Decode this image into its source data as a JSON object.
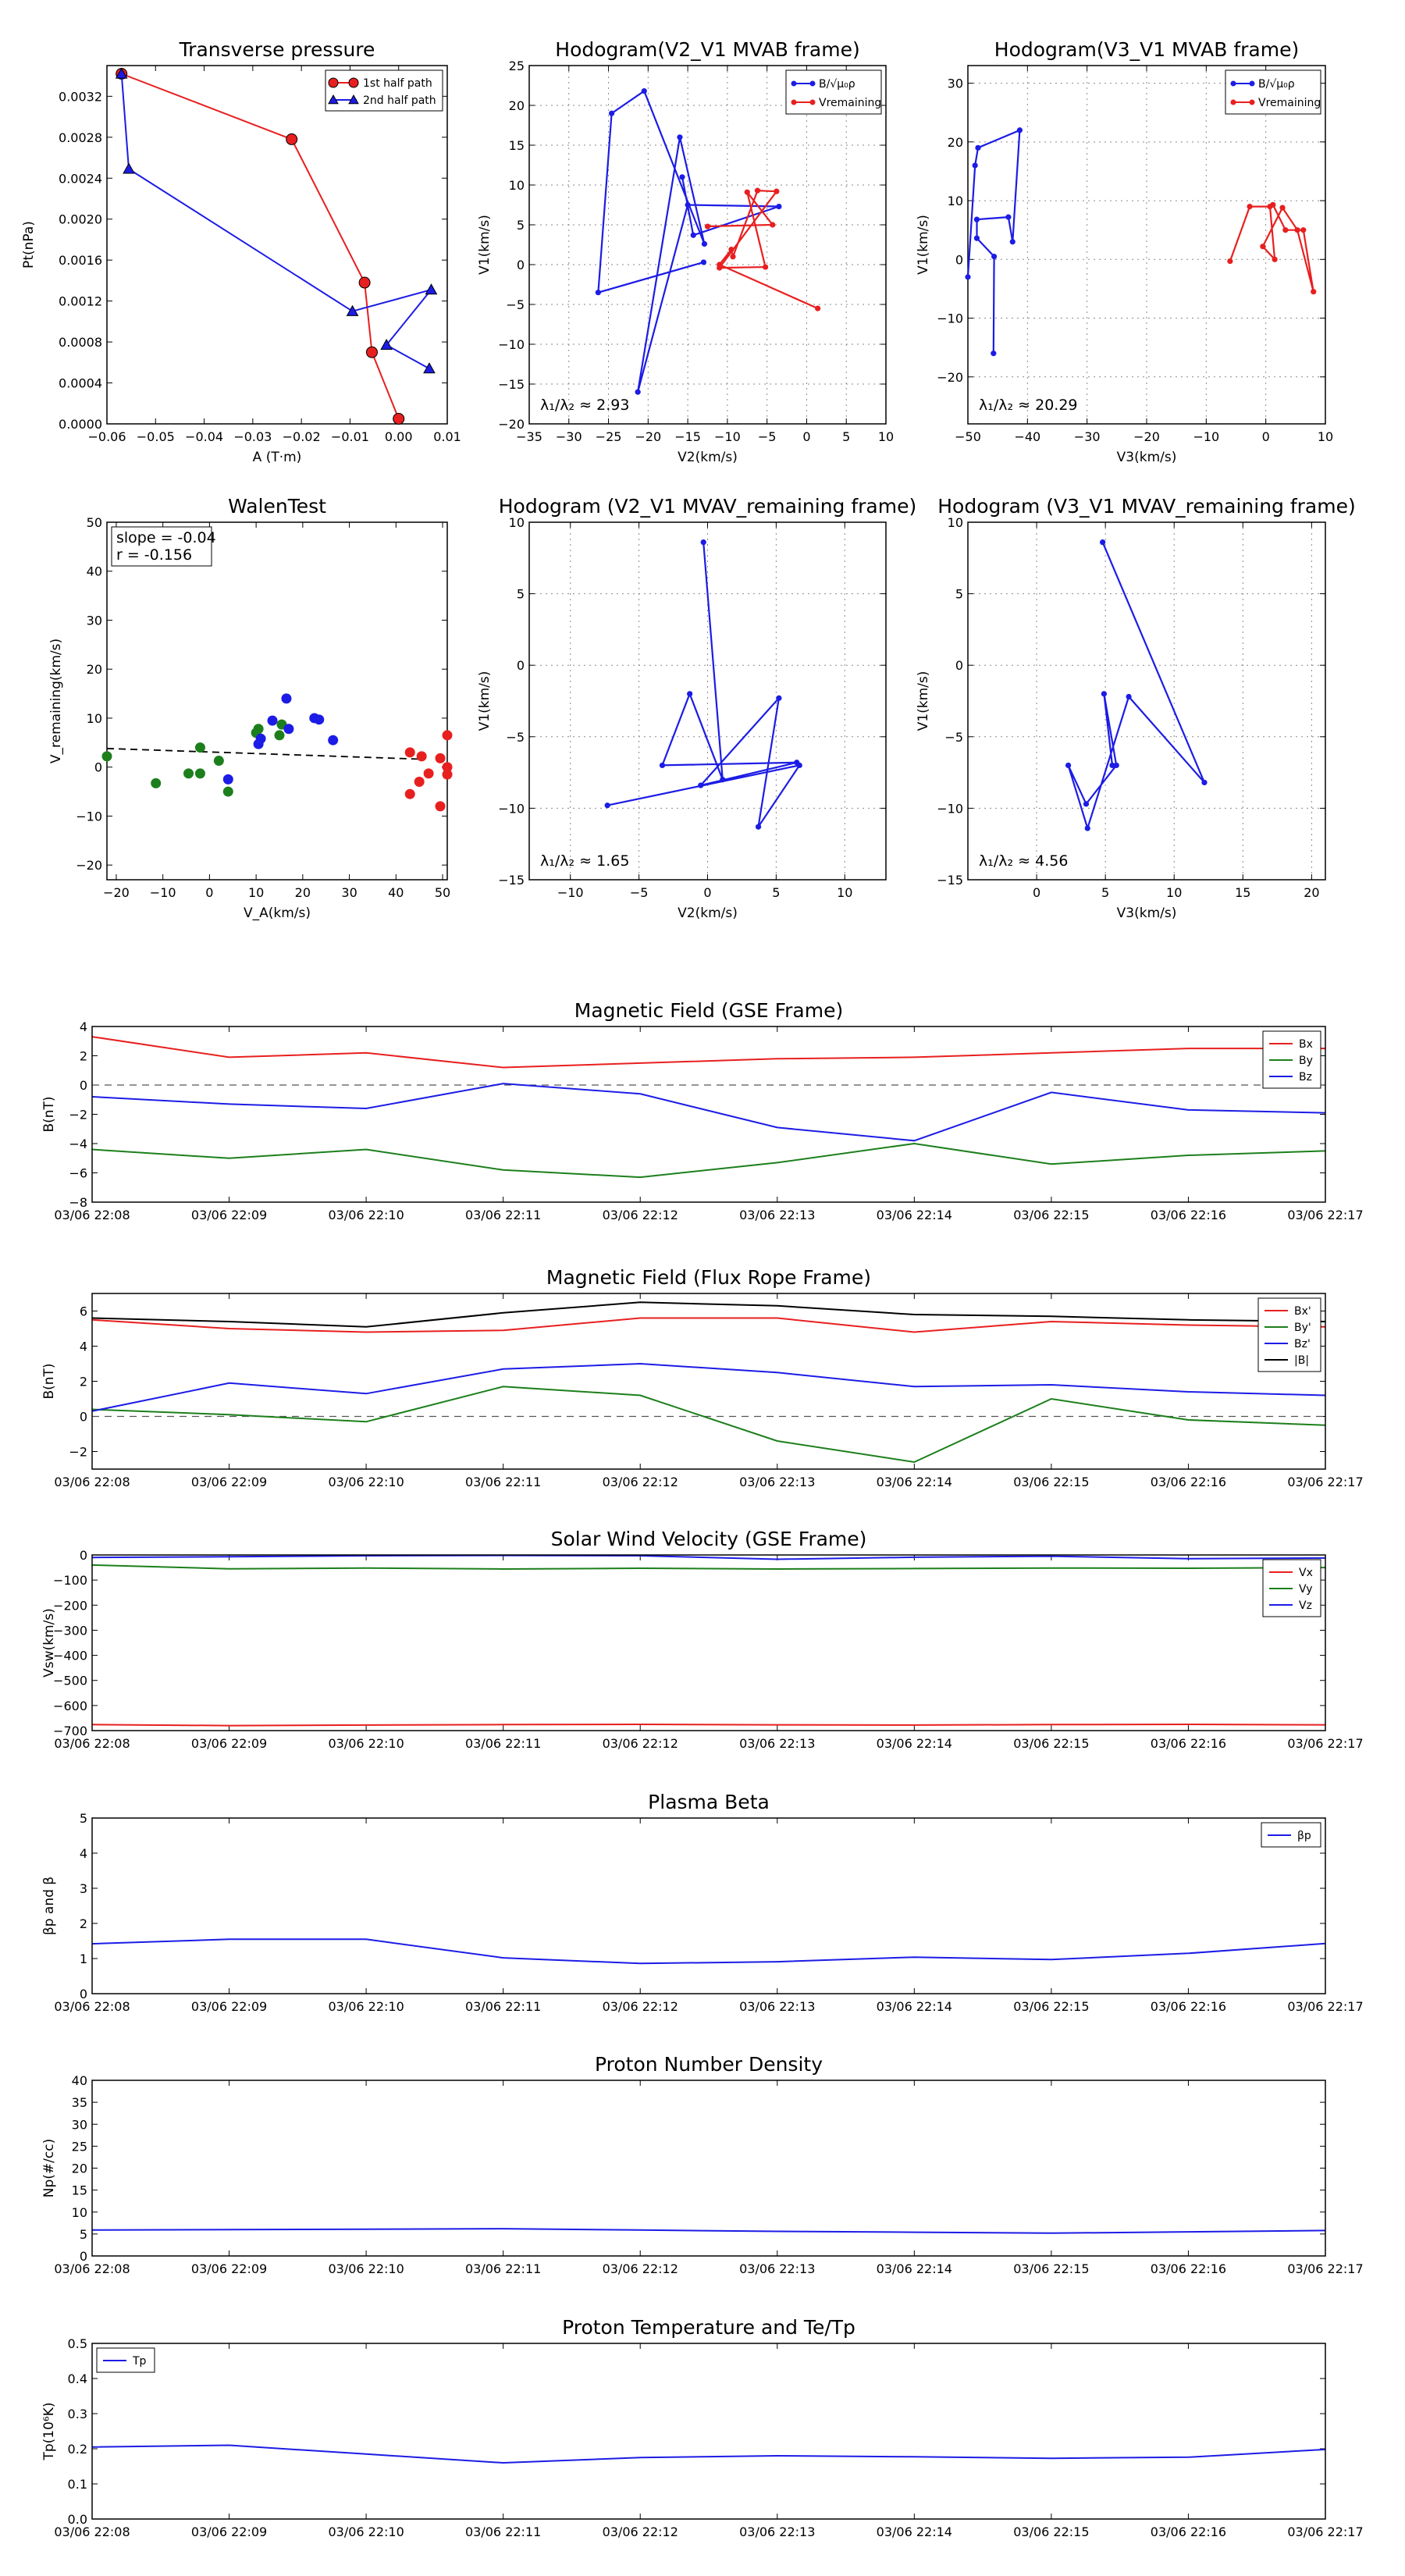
{
  "colors": {
    "red": "#e81f1f",
    "green": "#1c7f1c",
    "blue": "#1c1ce6",
    "black": "#000000"
  },
  "chart_data": [
    {
      "id": "pt",
      "type": "line",
      "title": "Transverse pressure",
      "xlabel": "A (T·m)",
      "ylabel": "Pt(nPa)",
      "xlim": [
        -0.06,
        0.01
      ],
      "ylim": [
        0,
        0.0035
      ],
      "xticks": [
        -0.06,
        -0.05,
        -0.04,
        -0.03,
        -0.02,
        -0.01,
        0.0,
        0.01
      ],
      "xticklabels": [
        "−0.06",
        "−0.05",
        "−0.04",
        "−0.03",
        "−0.02",
        "−0.01",
        "0.00",
        "0.01"
      ],
      "yticks": [
        0,
        0.0004,
        0.0008,
        0.0012,
        0.0016,
        0.002,
        0.0024,
        0.0028,
        0.0032
      ],
      "yticklabels": [
        "0.0000",
        "0.0004",
        "0.0008",
        "0.0012",
        "0.0016",
        "0.0020",
        "0.0024",
        "0.0028",
        "0.0032"
      ],
      "legend_position": "top-right",
      "series": [
        {
          "name": "1st half path",
          "color": "red",
          "marker": "circle",
          "points": [
            [
              -0.057,
              0.00342
            ],
            [
              -0.022,
              0.00278
            ],
            [
              -0.007,
              0.00138
            ],
            [
              -0.0055,
              0.0007
            ],
            [
              0.0,
              5e-05
            ]
          ]
        },
        {
          "name": "2nd half path",
          "color": "blue",
          "marker": "triangle",
          "points": [
            [
              -0.057,
              0.00342
            ],
            [
              -0.0555,
              0.00249
            ],
            [
              -0.0095,
              0.0011
            ],
            [
              0.0067,
              0.00131
            ],
            [
              -0.0025,
              0.00077
            ],
            [
              0.0063,
              0.00054
            ]
          ]
        }
      ]
    },
    {
      "id": "h1",
      "type": "line",
      "title": "Hodogram(V2_V1 MVAB frame)",
      "xlabel": "V2(km/s)",
      "ylabel": "V1(km/s)",
      "xlim": [
        -35,
        10
      ],
      "ylim": [
        -20,
        25
      ],
      "xticks": [
        -35,
        -30,
        -25,
        -20,
        -15,
        -10,
        -5,
        0,
        5,
        10
      ],
      "yticks": [
        -20,
        -15,
        -10,
        -5,
        0,
        5,
        10,
        15,
        20,
        25
      ],
      "grid": true,
      "legend_position": "top-right",
      "legend": [
        {
          "text": "B/√μ₀ρ",
          "color": "blue"
        },
        {
          "text": "Vremaining",
          "color": "red"
        }
      ],
      "annotation": "λ₁/λ₂ ≈ 2.93",
      "series": [
        {
          "color": "blue",
          "points": [
            [
              -13,
              0.3
            ],
            [
              -26.3,
              -3.5
            ],
            [
              -24.6,
              19
            ],
            [
              -20.5,
              21.8
            ],
            [
              -12.9,
              2.6
            ],
            [
              -16,
              16
            ],
            [
              -21.3,
              -16
            ],
            [
              -15,
              7.5
            ],
            [
              -3.5,
              7.3
            ],
            [
              -14.3,
              3.7
            ],
            [
              -15.7,
              11
            ]
          ]
        },
        {
          "color": "red",
          "points": [
            [
              -12.5,
              4.8
            ],
            [
              -4.3,
              5
            ],
            [
              -7.5,
              9.1
            ],
            [
              -5.2,
              -0.3
            ],
            [
              -11,
              -0.4
            ],
            [
              -3.8,
              9.2
            ],
            [
              -6.2,
              9.3
            ],
            [
              -9.3,
              1
            ],
            [
              -9.5,
              1.9
            ],
            [
              -11,
              0
            ],
            [
              1.4,
              -5.5
            ]
          ]
        }
      ]
    },
    {
      "id": "h2",
      "type": "line",
      "title": "Hodogram(V3_V1 MVAB frame)",
      "xlabel": "V3(km/s)",
      "ylabel": "V1(km/s)",
      "xlim": [
        -50,
        10
      ],
      "ylim": [
        -28,
        33
      ],
      "xticks": [
        -50,
        -40,
        -30,
        -20,
        -10,
        0,
        10
      ],
      "yticks": [
        -20,
        -10,
        0,
        10,
        20,
        30
      ],
      "grid": true,
      "legend_position": "top-right",
      "legend": [
        {
          "text": "B/√μ₀ρ",
          "color": "blue"
        },
        {
          "text": "Vremaining",
          "color": "red"
        }
      ],
      "annotation": "λ₁/λ₂ ≈ 20.29",
      "series": [
        {
          "color": "blue",
          "points": [
            [
              -50,
              -3
            ],
            [
              -48.8,
              16
            ],
            [
              -48.3,
              19
            ],
            [
              -41.3,
              22
            ],
            [
              -42.5,
              3
            ],
            [
              -43.2,
              7.2
            ],
            [
              -48.5,
              6.8
            ],
            [
              -48.5,
              3.6
            ],
            [
              -45.6,
              0.5
            ],
            [
              -45.7,
              -16
            ]
          ]
        },
        {
          "color": "red",
          "points": [
            [
              -6,
              -0.3
            ],
            [
              -2.7,
              9
            ],
            [
              0.7,
              9
            ],
            [
              1.5,
              0
            ],
            [
              -0.5,
              2.2
            ],
            [
              2.8,
              8.8
            ],
            [
              5.3,
              5
            ],
            [
              8,
              -5.5
            ],
            [
              6.3,
              5
            ],
            [
              3.3,
              5
            ],
            [
              1.2,
              9.3
            ]
          ]
        }
      ]
    },
    {
      "id": "walen",
      "type": "scatter",
      "title": "WalenTest",
      "xlabel": "V_A(km/s)",
      "ylabel": "V_remaining(km/s)",
      "xlim": [
        -22,
        51
      ],
      "ylim": [
        -23,
        50
      ],
      "xticks": [
        -20,
        -10,
        0,
        10,
        20,
        30,
        40,
        50
      ],
      "yticks": [
        -20,
        -10,
        0,
        10,
        20,
        30,
        40,
        50
      ],
      "annotation": [
        "slope = -0.04",
        "r = -0.156"
      ],
      "fit": {
        "slope": -0.04,
        "intercept": 3.8
      },
      "series": [
        {
          "color": "green",
          "points": [
            [
              -22,
              2.2
            ],
            [
              -11.5,
              -3.3
            ],
            [
              -4.5,
              -1.3
            ],
            [
              -2,
              4
            ],
            [
              -2,
              -1.3
            ],
            [
              2,
              1.3
            ],
            [
              4,
              -5
            ],
            [
              10,
              7
            ],
            [
              10.5,
              7.8
            ],
            [
              15,
              6.5
            ],
            [
              15.5,
              8.7
            ]
          ]
        },
        {
          "color": "blue",
          "points": [
            [
              4,
              -2.5
            ],
            [
              10.5,
              4.7
            ],
            [
              11,
              5.8
            ],
            [
              13.5,
              9.5
            ],
            [
              16.5,
              14
            ],
            [
              17,
              7.8
            ],
            [
              22.5,
              10
            ],
            [
              23.5,
              9.7
            ],
            [
              26.5,
              5.5
            ]
          ]
        },
        {
          "color": "red",
          "points": [
            [
              43,
              3
            ],
            [
              43,
              -5.5
            ],
            [
              45,
              -3
            ],
            [
              45.5,
              2.2
            ],
            [
              47,
              -1.3
            ],
            [
              49.5,
              1.8
            ],
            [
              49.5,
              -8
            ],
            [
              51,
              6.5
            ],
            [
              51,
              0
            ],
            [
              51,
              -1.5
            ]
          ]
        }
      ]
    },
    {
      "id": "h3",
      "type": "line",
      "title": "Hodogram (V2_V1 MVAV_remaining frame)",
      "xlabel": "V2(km/s)",
      "ylabel": "V1(km/s)",
      "xlim": [
        -13,
        13
      ],
      "ylim": [
        -15,
        10
      ],
      "xticks": [
        -10,
        -5,
        0,
        5,
        10
      ],
      "yticks": [
        -15,
        -10,
        -5,
        0,
        5,
        10
      ],
      "grid": true,
      "annotation": "λ₁/λ₂ ≈ 1.65",
      "series": [
        {
          "color": "blue",
          "points": [
            [
              -0.3,
              8.6
            ],
            [
              1.1,
              -8
            ],
            [
              -1.3,
              -2
            ],
            [
              -3.3,
              -7
            ],
            [
              6.5,
              -6.8
            ],
            [
              -0.5,
              -8.4
            ],
            [
              5.2,
              -2.3
            ],
            [
              3.7,
              -11.3
            ],
            [
              6.7,
              -7
            ],
            [
              -7.3,
              -9.8
            ]
          ]
        }
      ]
    },
    {
      "id": "h4",
      "type": "line",
      "title": "Hodogram (V3_V1 MVAV_remaining frame)",
      "xlabel": "V3(km/s)",
      "ylabel": "V1(km/s)",
      "xlim": [
        -5,
        21
      ],
      "ylim": [
        -15,
        10
      ],
      "xticks": [
        0,
        5,
        10,
        15,
        20
      ],
      "yticks": [
        -15,
        -10,
        -5,
        0,
        5,
        10
      ],
      "grid": true,
      "annotation": "λ₁/λ₂ ≈ 4.56",
      "series": [
        {
          "color": "blue",
          "points": [
            [
              4.8,
              8.6
            ],
            [
              12.2,
              -8.2
            ],
            [
              6.7,
              -2.2
            ],
            [
              3.7,
              -11.4
            ],
            [
              2.3,
              -7
            ],
            [
              3.6,
              -9.7
            ],
            [
              5.8,
              -7
            ],
            [
              4.9,
              -2
            ],
            [
              5.5,
              -7
            ]
          ]
        }
      ]
    },
    {
      "id": "bgse",
      "type": "line",
      "title": "Magnetic Field (GSE Frame)",
      "ylabel": "B(nT)",
      "ylim": [
        -8,
        4
      ],
      "yticks": [
        -8,
        -6,
        -4,
        -2,
        0,
        2,
        4
      ],
      "yticklabels": [
        "−8",
        "−6",
        "−4",
        "−2",
        "0",
        "2",
        "4"
      ],
      "zero_line": true,
      "legend_position": "top-right",
      "series": [
        {
          "name": "Bx",
          "color": "red",
          "values": [
            3.3,
            1.9,
            2.2,
            1.2,
            1.5,
            1.8,
            1.9,
            2.2,
            2.5,
            2.5
          ]
        },
        {
          "name": "By",
          "color": "green",
          "values": [
            -4.4,
            -5,
            -4.4,
            -5.8,
            -6.3,
            -5.3,
            -4.0,
            -5.4,
            -4.8,
            -4.5
          ]
        },
        {
          "name": "Bz",
          "color": "blue",
          "values": [
            -0.8,
            -1.3,
            -1.6,
            0.1,
            -0.6,
            -2.9,
            -3.8,
            -0.5,
            -1.7,
            -1.9
          ]
        }
      ]
    },
    {
      "id": "bfr",
      "type": "line",
      "title": "Magnetic Field (Flux Rope Frame)",
      "ylabel": "B(nT)",
      "ylim": [
        -3,
        7
      ],
      "yticks": [
        -2,
        0,
        2,
        4,
        6
      ],
      "yticklabels": [
        "−2",
        "0",
        "2",
        "4",
        "6"
      ],
      "zero_line": true,
      "legend_position": "top-right",
      "series": [
        {
          "name": "Bx'",
          "color": "red",
          "values": [
            5.5,
            5.0,
            4.8,
            4.9,
            5.6,
            5.6,
            4.8,
            5.4,
            5.2,
            5.1
          ]
        },
        {
          "name": "By'",
          "color": "green",
          "values": [
            0.4,
            0.1,
            -0.3,
            1.7,
            1.2,
            -1.4,
            -2.6,
            1.0,
            -0.2,
            -0.5
          ]
        },
        {
          "name": "Bz'",
          "color": "blue",
          "values": [
            0.3,
            1.9,
            1.3,
            2.7,
            3.0,
            2.5,
            1.7,
            1.8,
            1.4,
            1.2
          ]
        },
        {
          "name": "|B|",
          "color": "black",
          "values": [
            5.6,
            5.4,
            5.1,
            5.9,
            6.5,
            6.3,
            5.8,
            5.7,
            5.5,
            5.4
          ]
        }
      ]
    },
    {
      "id": "vsw",
      "type": "line",
      "title": "Solar Wind Velocity (GSE Frame)",
      "ylabel": "Vsw(km/s)",
      "ylim": [
        -700,
        0
      ],
      "yticks": [
        -700,
        -600,
        -500,
        -400,
        -300,
        -200,
        -100,
        0
      ],
      "yticklabels": [
        "−700",
        "−600",
        "−500",
        "−400",
        "−300",
        "−200",
        "−100",
        "0"
      ],
      "legend_position": "top-right",
      "series": [
        {
          "name": "Vx",
          "color": "red",
          "values": [
            -676,
            -680,
            -678,
            -676,
            -675,
            -677,
            -678,
            -676,
            -675,
            -677
          ]
        },
        {
          "name": "Vy",
          "color": "green",
          "values": [
            -40,
            -55,
            -52,
            -56,
            -53,
            -56,
            -54,
            -52,
            -53,
            -50
          ]
        },
        {
          "name": "Vz",
          "color": "blue",
          "values": [
            -10,
            -7,
            -3,
            -2,
            -3,
            -17,
            -9,
            -5,
            -15,
            -12
          ]
        }
      ]
    },
    {
      "id": "beta",
      "type": "line",
      "title": "Plasma Beta",
      "ylabel": "βp and β",
      "ylim": [
        0,
        5
      ],
      "yticks": [
        0,
        1,
        2,
        3,
        4,
        5
      ],
      "legend_position": "top-right",
      "series": [
        {
          "name": "βp",
          "color": "blue",
          "values": [
            1.42,
            1.55,
            1.55,
            1.02,
            0.86,
            0.91,
            1.04,
            0.97,
            1.15,
            1.43
          ]
        }
      ]
    },
    {
      "id": "np",
      "type": "line",
      "title": "Proton Number Density",
      "ylabel": "Np(#/cc)",
      "ylim": [
        0,
        40
      ],
      "yticks": [
        0,
        5,
        10,
        15,
        20,
        25,
        30,
        35,
        40
      ],
      "series": [
        {
          "color": "blue",
          "values": [
            5.9,
            6.0,
            6.1,
            6.2,
            5.9,
            5.6,
            5.4,
            5.2,
            5.5,
            5.8
          ]
        }
      ]
    },
    {
      "id": "tp",
      "type": "line",
      "title": "Proton Temperature and Te/Tp",
      "ylabel": "Tp(10⁶K)",
      "ylim": [
        0,
        0.5
      ],
      "yticks": [
        0,
        0.1,
        0.2,
        0.3,
        0.4,
        0.5
      ],
      "yticklabels": [
        "0.0",
        "0.1",
        "0.2",
        "0.3",
        "0.4",
        "0.5"
      ],
      "legend_position": "top-left",
      "series": [
        {
          "name": "Tp",
          "color": "blue",
          "values": [
            0.205,
            0.21,
            0.185,
            0.16,
            0.175,
            0.18,
            0.177,
            0.173,
            0.176,
            0.198
          ]
        }
      ]
    }
  ],
  "time_axis": {
    "labels": [
      "03/06 22:08",
      "03/06 22:09",
      "03/06 22:10",
      "03/06 22:11",
      "03/06 22:12",
      "03/06 22:13",
      "03/06 22:14",
      "03/06 22:15",
      "03/06 22:16",
      "03/06 22:17"
    ]
  }
}
